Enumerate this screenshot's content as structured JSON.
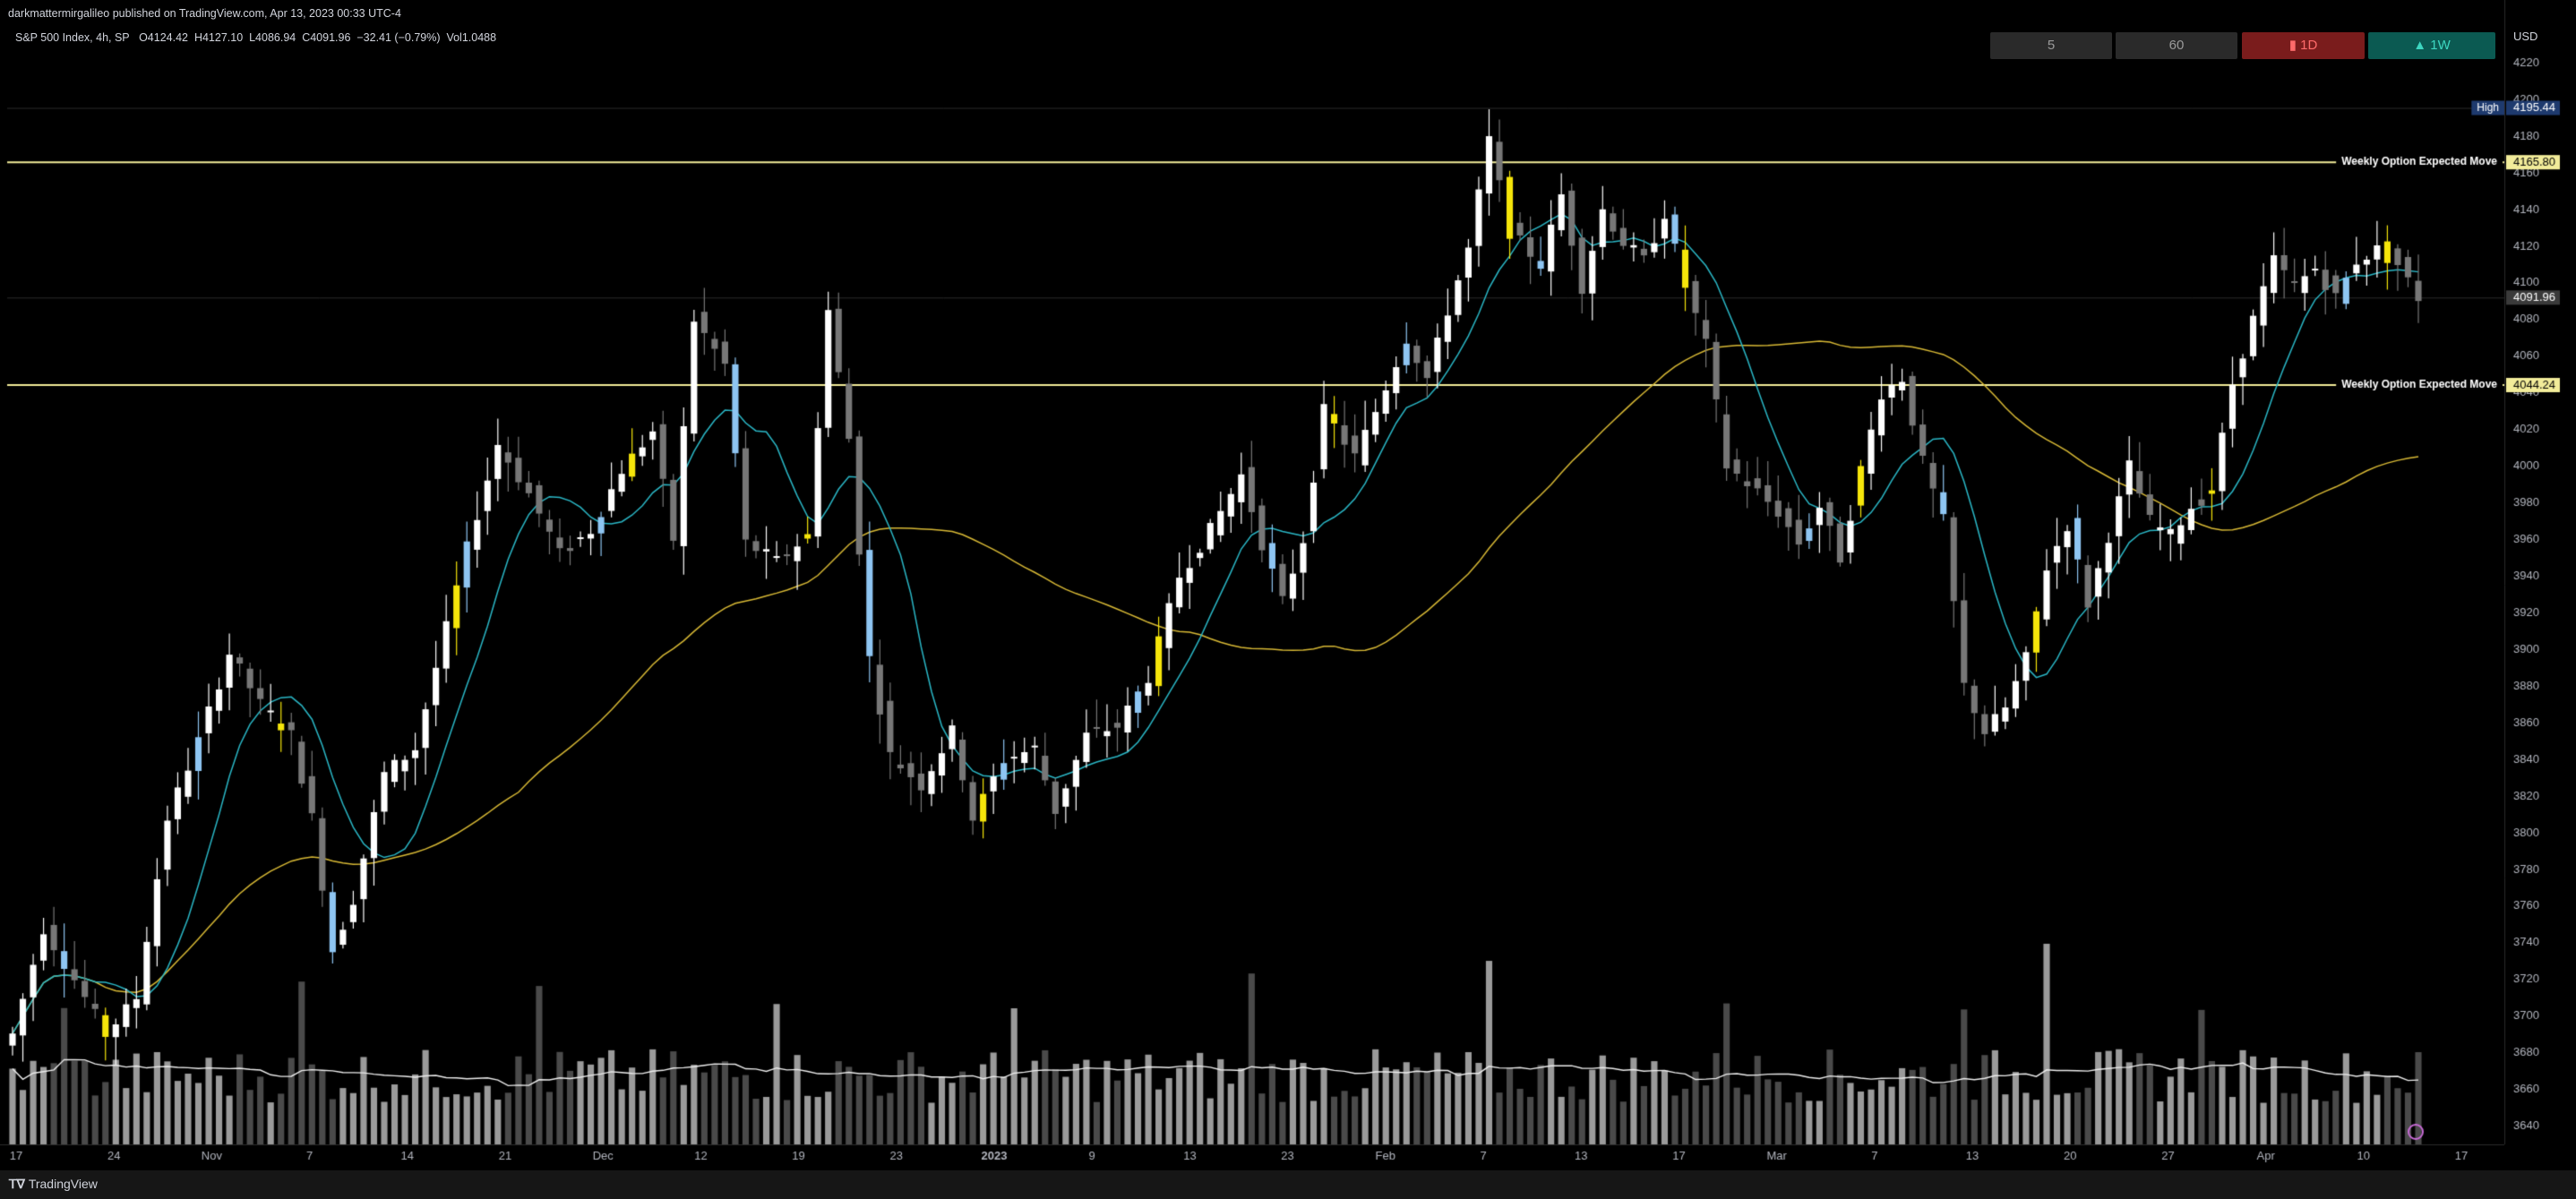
{
  "publish_line": "darkmattermirgalileo published on TradingView.com, Apr 13, 2023 00:33 UTC-4",
  "symbol_line": "S&P 500 Index, 4h, SP",
  "ohlc": {
    "open": "O4124.42",
    "high": "H4127.10",
    "low": "L4086.94",
    "close": "C4091.96",
    "change": "−32.41 (−0.79%)",
    "vol": "Vol1.0488"
  },
  "currency": "USD",
  "timeframe_buttons": [
    {
      "label": "5",
      "style": "neutral"
    },
    {
      "label": "60",
      "style": "neutral"
    },
    {
      "label": "▮ 1D",
      "style": "down"
    },
    {
      "label": "▲ 1W",
      "style": "up"
    }
  ],
  "brand": "TradingView",
  "colors": {
    "up_candle": "#ffffff",
    "down_candle": "#777777",
    "highlight_yellow": "#f5e50a",
    "highlight_blue": "#8ec5f2",
    "ma_fast": "#2ab7c6",
    "ma_slow": "#d8b935",
    "level_line": "#f2ec9a",
    "volume_light": "#9a9a9a",
    "volume_dark": "#4a4a4a",
    "axis_text": "#b2b5be",
    "up_button": "#0b5a52",
    "down_button": "#7a1c1c"
  },
  "chart_data": {
    "type": "candlestick",
    "y_axis": {
      "range": [
        3630,
        4225
      ],
      "ticks": [
        4220,
        4200,
        4180,
        4160,
        4140,
        4120,
        4100,
        4080,
        4060,
        4040,
        4020,
        4000,
        3980,
        3960,
        3940,
        3920,
        3900,
        3880,
        3860,
        3840,
        3820,
        3800,
        3780,
        3760,
        3740,
        3720,
        3700,
        3680,
        3660,
        3640
      ]
    },
    "x_axis": {
      "labels": [
        "17",
        "24",
        "Nov",
        "7",
        "14",
        "21",
        "Dec",
        "12",
        "19",
        "23",
        "2023",
        "9",
        "13",
        "23",
        "Feb",
        "7",
        "13",
        "17",
        "Mar",
        "7",
        "13",
        "20",
        "27",
        "Apr",
        "10",
        "17"
      ],
      "bold_labels": [
        "2023"
      ]
    },
    "price_labels": [
      {
        "text": "High",
        "value": "4195.44",
        "price": 4195.44,
        "style": "high"
      },
      {
        "text": "Weekly Option Expected Move",
        "value": "4165.80",
        "price": 4165.8,
        "style": "level"
      },
      {
        "text": "",
        "value": "4091.96",
        "price": 4091.96,
        "style": "last"
      },
      {
        "text": "Weekly Option Expected Move",
        "value": "4044.24",
        "price": 4044.24,
        "style": "level"
      }
    ],
    "horizontal_levels": [
      4165.8,
      4044.24
    ],
    "anchors": [
      [
        0,
        3690
      ],
      [
        3,
        3748
      ],
      [
        6,
        3720
      ],
      [
        9,
        3690
      ],
      [
        12,
        3710
      ],
      [
        15,
        3808
      ],
      [
        18,
        3850
      ],
      [
        21,
        3898
      ],
      [
        24,
        3870
      ],
      [
        27,
        3853
      ],
      [
        29,
        3808
      ],
      [
        31,
        3736
      ],
      [
        33,
        3764
      ],
      [
        36,
        3832
      ],
      [
        39,
        3846
      ],
      [
        41,
        3890
      ],
      [
        44,
        3955
      ],
      [
        47,
        4012
      ],
      [
        50,
        3985
      ],
      [
        53,
        3952
      ],
      [
        56,
        3965
      ],
      [
        59,
        3998
      ],
      [
        62,
        4019
      ],
      [
        64,
        3960
      ],
      [
        66,
        4080
      ],
      [
        69,
        4055
      ],
      [
        71,
        3958
      ],
      [
        74,
        3948
      ],
      [
        77,
        3962
      ],
      [
        79,
        4085
      ],
      [
        81,
        4015
      ],
      [
        83,
        3895
      ],
      [
        85,
        3842
      ],
      [
        88,
        3826
      ],
      [
        91,
        3855
      ],
      [
        93,
        3808
      ],
      [
        96,
        3840
      ],
      [
        99,
        3846
      ],
      [
        101,
        3812
      ],
      [
        104,
        3853
      ],
      [
        107,
        3858
      ],
      [
        110,
        3885
      ],
      [
        113,
        3940
      ],
      [
        116,
        3965
      ],
      [
        119,
        3995
      ],
      [
        121,
        3958
      ],
      [
        123,
        3926
      ],
      [
        125,
        3960
      ],
      [
        127,
        4030
      ],
      [
        130,
        4005
      ],
      [
        132,
        4030
      ],
      [
        135,
        4070
      ],
      [
        137,
        4048
      ],
      [
        139,
        4085
      ],
      [
        141,
        4118
      ],
      [
        143,
        4178
      ],
      [
        145,
        4128
      ],
      [
        148,
        4110
      ],
      [
        150,
        4148
      ],
      [
        152,
        4098
      ],
      [
        154,
        4140
      ],
      [
        156,
        4122
      ],
      [
        158,
        4112
      ],
      [
        160,
        4138
      ],
      [
        162,
        4098
      ],
      [
        164,
        4066
      ],
      [
        166,
        4000
      ],
      [
        169,
        3986
      ],
      [
        171,
        3975
      ],
      [
        173,
        3958
      ],
      [
        175,
        3978
      ],
      [
        177,
        3950
      ],
      [
        179,
        3998
      ],
      [
        181,
        4040
      ],
      [
        183,
        4048
      ],
      [
        185,
        4002
      ],
      [
        187,
        3970
      ],
      [
        189,
        3880
      ],
      [
        191,
        3855
      ],
      [
        193,
        3868
      ],
      [
        195,
        3895
      ],
      [
        197,
        3945
      ],
      [
        199,
        3968
      ],
      [
        201,
        3925
      ],
      [
        203,
        3962
      ],
      [
        205,
        4000
      ],
      [
        207,
        3970
      ],
      [
        209,
        3962
      ],
      [
        211,
        3978
      ],
      [
        213,
        3986
      ],
      [
        215,
        4045
      ],
      [
        217,
        4080
      ],
      [
        219,
        4112
      ],
      [
        221,
        4098
      ],
      [
        223,
        4108
      ],
      [
        225,
        4092
      ],
      [
        227,
        4112
      ],
      [
        229,
        4118
      ],
      [
        231,
        4110
      ],
      [
        233,
        4092
      ]
    ],
    "ma_fast_period": 9,
    "ma_slow_period": 50,
    "volume_ma_period": 20
  }
}
